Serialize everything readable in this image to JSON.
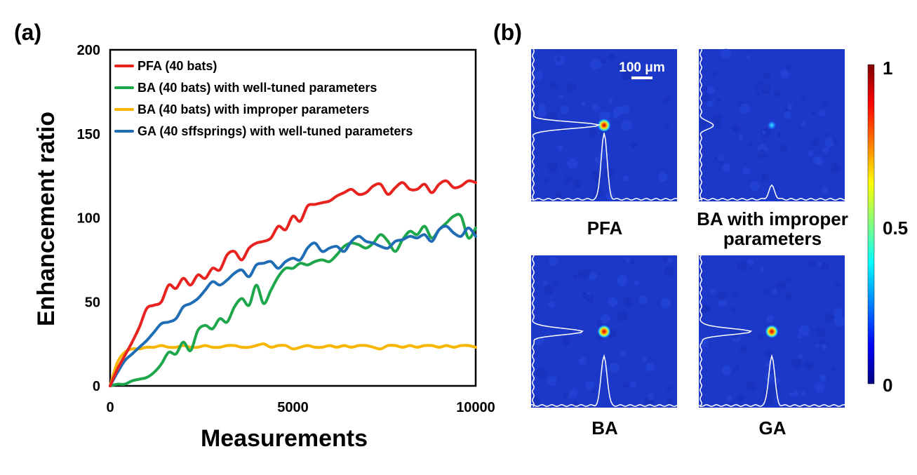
{
  "panel_a_label": "(a)",
  "panel_b_label": "(b)",
  "chart_data": {
    "type": "line",
    "xlabel": "Measurements",
    "ylabel": "Enhancement ratio",
    "xlim": [
      0,
      10000
    ],
    "ylim": [
      0,
      200
    ],
    "xticks": [
      0,
      5000,
      10000
    ],
    "yticks": [
      0,
      50,
      100,
      150,
      200
    ],
    "grid": false,
    "legend_position": "top-left",
    "series": [
      {
        "name": "PFA (40 bats)",
        "color": "#e8231f",
        "x": [
          0,
          200,
          400,
          600,
          800,
          1000,
          1200,
          1400,
          1600,
          1800,
          2000,
          2200,
          2400,
          2600,
          2800,
          3000,
          3200,
          3400,
          3600,
          3800,
          4000,
          4200,
          4400,
          4600,
          4800,
          5000,
          5200,
          5400,
          5600,
          5800,
          6000,
          6200,
          6400,
          6600,
          6800,
          7000,
          7200,
          7400,
          7600,
          7800,
          8000,
          8200,
          8400,
          8600,
          8800,
          9000,
          9200,
          9400,
          9600,
          9800,
          10000
        ],
        "y": [
          0,
          10,
          18,
          26,
          35,
          46,
          48,
          50,
          60,
          58,
          64,
          60,
          66,
          64,
          70,
          69,
          78,
          80,
          75,
          82,
          85,
          86,
          88,
          95,
          93,
          101,
          98,
          107,
          108,
          109,
          110,
          113,
          115,
          117,
          114,
          115,
          119,
          120,
          114,
          118,
          121,
          117,
          117,
          120,
          115,
          120,
          122,
          118,
          119,
          122,
          121
        ]
      },
      {
        "name": "BA (40 bats) with well-tuned parameters",
        "color": "#1ea64a",
        "x": [
          0,
          200,
          400,
          600,
          800,
          1000,
          1200,
          1400,
          1600,
          1800,
          2000,
          2200,
          2400,
          2600,
          2800,
          3000,
          3200,
          3400,
          3600,
          3800,
          4000,
          4200,
          4400,
          4600,
          4800,
          5000,
          5200,
          5400,
          5600,
          5800,
          6000,
          6200,
          6400,
          6600,
          6800,
          7000,
          7200,
          7400,
          7600,
          7800,
          8000,
          8200,
          8400,
          8600,
          8800,
          9000,
          9200,
          9400,
          9600,
          9800,
          10000
        ],
        "y": [
          0,
          1,
          1,
          3,
          4,
          5,
          8,
          13,
          20,
          19,
          26,
          21,
          33,
          36,
          34,
          40,
          38,
          47,
          52,
          48,
          60,
          49,
          57,
          65,
          70,
          70,
          73,
          72,
          74,
          75,
          74,
          78,
          83,
          85,
          84,
          82,
          85,
          90,
          86,
          80,
          87,
          92,
          90,
          95,
          88,
          93,
          97,
          101,
          101,
          88,
          94
        ]
      },
      {
        "name": "BA (40 bats) with improper parameters",
        "color": "#f7b500",
        "x": [
          0,
          200,
          400,
          600,
          800,
          1000,
          1200,
          1400,
          1600,
          1800,
          2000,
          2200,
          2400,
          2600,
          2800,
          3000,
          3200,
          3400,
          3600,
          3800,
          4000,
          4200,
          4400,
          4600,
          4800,
          5000,
          5200,
          5400,
          5600,
          5800,
          6000,
          6200,
          6400,
          6600,
          6800,
          7000,
          7200,
          7400,
          7600,
          7800,
          8000,
          8200,
          8400,
          8600,
          8800,
          9000,
          9200,
          9400,
          9600,
          9800,
          10000
        ],
        "y": [
          0,
          14,
          20,
          22,
          22,
          23,
          23,
          24,
          23,
          23,
          24,
          23,
          23,
          24,
          23,
          23,
          24,
          24,
          23,
          23,
          24,
          25,
          23,
          24,
          24,
          22,
          23,
          24,
          23,
          23,
          24,
          23,
          24,
          23,
          24,
          24,
          23,
          22,
          24,
          24,
          23,
          24,
          23,
          24,
          24,
          23,
          24,
          23,
          24,
          24,
          23
        ]
      },
      {
        "name": "GA (40 sffsprings) with well-tuned parameters",
        "color": "#1f6db5",
        "x": [
          0,
          200,
          400,
          600,
          800,
          1000,
          1200,
          1400,
          1600,
          1800,
          2000,
          2200,
          2400,
          2600,
          2800,
          3000,
          3200,
          3400,
          3600,
          3800,
          4000,
          4200,
          4400,
          4600,
          4800,
          5000,
          5200,
          5400,
          5600,
          5800,
          6000,
          6200,
          6400,
          6600,
          6800,
          7000,
          7200,
          7400,
          7600,
          7800,
          8000,
          8200,
          8400,
          8600,
          8800,
          9000,
          9200,
          9400,
          9600,
          9800,
          10000
        ],
        "y": [
          0,
          8,
          15,
          19,
          23,
          27,
          32,
          37,
          38,
          40,
          47,
          49,
          52,
          57,
          62,
          60,
          63,
          67,
          69,
          65,
          72,
          73,
          74,
          70,
          74,
          76,
          75,
          82,
          85,
          80,
          82,
          83,
          80,
          86,
          89,
          86,
          85,
          83,
          82,
          86,
          87,
          89,
          88,
          90,
          86,
          93,
          95,
          91,
          89,
          94,
          89
        ]
      }
    ]
  },
  "heatmaps": {
    "scale_bar_label": "100 μm",
    "maps": [
      {
        "caption": "PFA",
        "peak": 1.0
      },
      {
        "caption": "BA with improper parameters",
        "caption_lines": [
          "BA with improper",
          "parameters"
        ],
        "peak": 0.2
      },
      {
        "caption": "BA",
        "peak": 0.75
      },
      {
        "caption": "GA",
        "peak": 0.75
      }
    ],
    "colorbar": {
      "labels": [
        "1",
        "0.5",
        "0"
      ],
      "colors": [
        "#7f0000",
        "#ff0000",
        "#ff7f00",
        "#ffff00",
        "#7fff7f",
        "#00ffff",
        "#007fff",
        "#0000ff",
        "#00007f"
      ]
    }
  }
}
